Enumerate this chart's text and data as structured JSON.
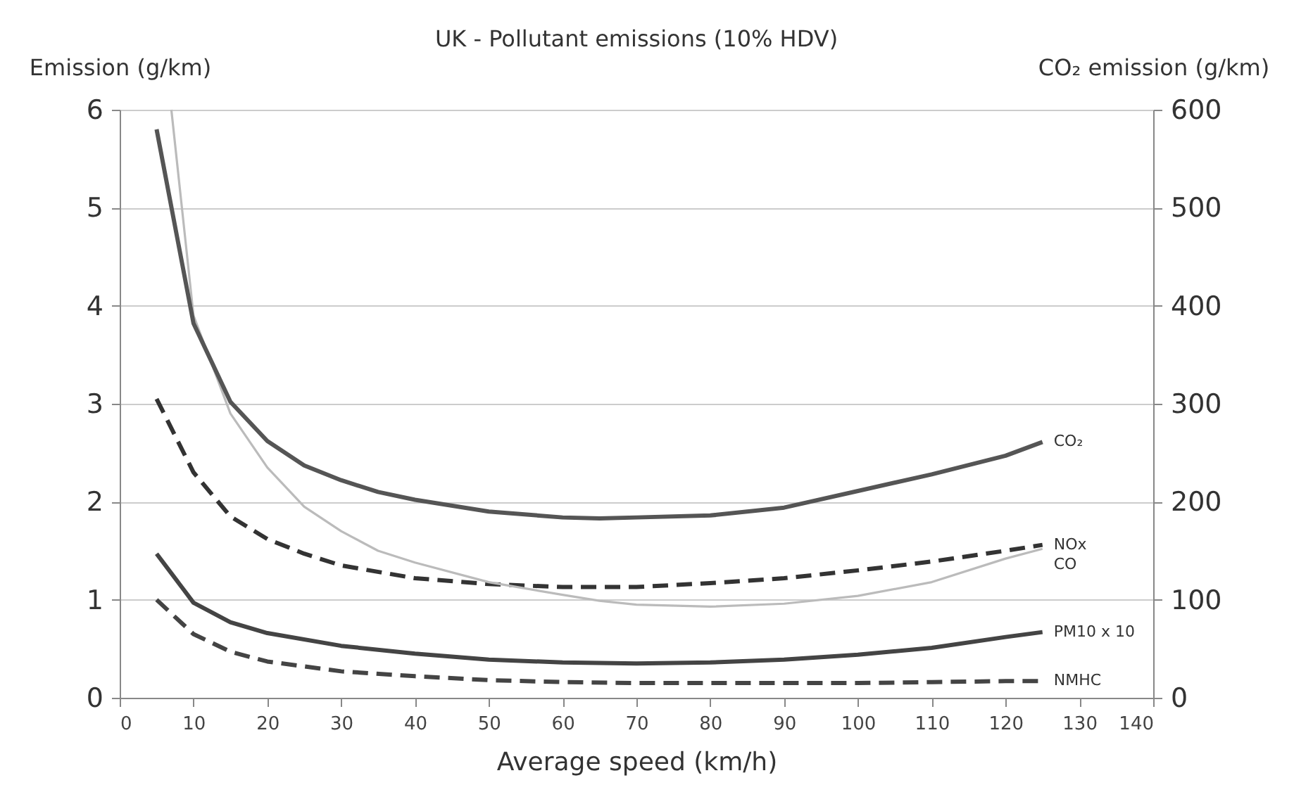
{
  "chart_data": {
    "type": "line",
    "title": "UK - Pollutant emissions (10% HDV)",
    "xlabel": "Average speed (km/h)",
    "ylabel": "Emission (g/km)",
    "y2label": "CO₂ emission (g/km)",
    "xlim": [
      0,
      140
    ],
    "xticks": [
      0,
      10,
      20,
      30,
      40,
      50,
      60,
      70,
      80,
      90,
      100,
      110,
      120,
      130,
      140
    ],
    "ylim": [
      0,
      6
    ],
    "yticks": [
      0,
      1,
      2,
      3,
      4,
      5,
      6
    ],
    "y2lim": [
      0,
      600
    ],
    "y2ticks": [
      0,
      100,
      200,
      300,
      400,
      500,
      600
    ],
    "grid": "y",
    "series": [
      {
        "name": "CO₂",
        "axis": "y2",
        "color": "#555555",
        "line_style": "solid",
        "x": [
          5,
          10,
          15,
          20,
          25,
          30,
          35,
          40,
          50,
          60,
          65,
          70,
          80,
          90,
          100,
          110,
          120,
          125
        ],
        "values": [
          580,
          382,
          302,
          262,
          237,
          222,
          210,
          202,
          190,
          184,
          183,
          184,
          186,
          194,
          211,
          228,
          247,
          261
        ]
      },
      {
        "name": "NOx",
        "color": "#333333",
        "line_style": "dashed",
        "x": [
          5,
          10,
          15,
          20,
          25,
          30,
          40,
          50,
          60,
          70,
          80,
          90,
          100,
          110,
          120,
          125
        ],
        "values": [
          3.05,
          2.3,
          1.85,
          1.62,
          1.47,
          1.35,
          1.22,
          1.16,
          1.13,
          1.13,
          1.17,
          1.22,
          1.3,
          1.39,
          1.5,
          1.56
        ]
      },
      {
        "name": "CO",
        "color": "#bbbbbb",
        "line_style": "solid",
        "x": [
          7,
          10,
          15,
          20,
          25,
          30,
          35,
          40,
          50,
          60,
          65,
          70,
          80,
          90,
          100,
          110,
          120,
          125
        ],
        "values": [
          6,
          3.9,
          2.9,
          2.35,
          1.95,
          1.7,
          1.5,
          1.38,
          1.18,
          1.05,
          0.99,
          0.95,
          0.93,
          0.96,
          1.04,
          1.18,
          1.42,
          1.52
        ]
      },
      {
        "name": "PM10 x 10",
        "color": "#444444",
        "line_style": "solid",
        "x": [
          5,
          10,
          15,
          20,
          30,
          40,
          50,
          60,
          70,
          80,
          90,
          100,
          110,
          120,
          125
        ],
        "values": [
          1.47,
          0.97,
          0.77,
          0.66,
          0.53,
          0.45,
          0.39,
          0.36,
          0.35,
          0.36,
          0.39,
          0.44,
          0.51,
          0.62,
          0.67
        ]
      },
      {
        "name": "NMHC",
        "color": "#444444",
        "line_style": "dashed",
        "x": [
          5,
          10,
          15,
          20,
          30,
          40,
          50,
          60,
          70,
          80,
          90,
          100,
          110,
          120,
          125
        ],
        "values": [
          1.0,
          0.65,
          0.47,
          0.37,
          0.27,
          0.22,
          0.18,
          0.16,
          0.15,
          0.15,
          0.15,
          0.15,
          0.16,
          0.17,
          0.17
        ]
      }
    ]
  }
}
